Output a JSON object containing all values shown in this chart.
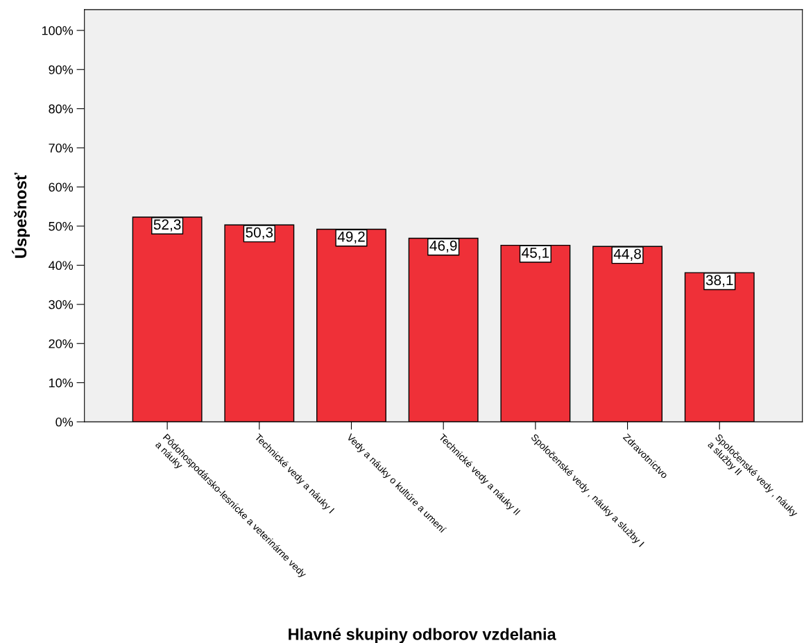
{
  "chart_data": {
    "type": "bar",
    "xlabel": "Hlavné skupiny odborov vzdelania",
    "ylabel": "Úspešnosť",
    "categories": [
      "Pôdohospodársko-lesnícke a veterinárne vedy\na náuky",
      "Technické vedy a náuky I",
      "Vedy a náuky o kultúre a umení",
      "Technické vedy a náuky II",
      "Spoločenské vedy , náuky a služby I",
      "Zdravotníctvo",
      "Spoločenské vedy , náuky\na služby II"
    ],
    "values": [
      52.3,
      50.3,
      49.2,
      46.9,
      45.1,
      44.8,
      38.1
    ],
    "value_labels": [
      "52,3",
      "50,3",
      "49,2",
      "46,9",
      "45,1",
      "44,8",
      "38,1"
    ],
    "color": "#ef3038",
    "ylim": [
      0,
      105.3
    ],
    "yticks": [
      {
        "value": 0,
        "label": "0%"
      },
      {
        "value": 10,
        "label": "10%"
      },
      {
        "value": 20,
        "label": "20%"
      },
      {
        "value": 30,
        "label": "30%"
      },
      {
        "value": 40,
        "label": "40%"
      },
      {
        "value": 50,
        "label": "50%"
      },
      {
        "value": 60,
        "label": "60%"
      },
      {
        "value": 70,
        "label": "70%"
      },
      {
        "value": 80,
        "label": "80%"
      },
      {
        "value": 90,
        "label": "90%"
      },
      {
        "value": 100,
        "label": "100%"
      }
    ],
    "grid": false,
    "legend": false
  }
}
